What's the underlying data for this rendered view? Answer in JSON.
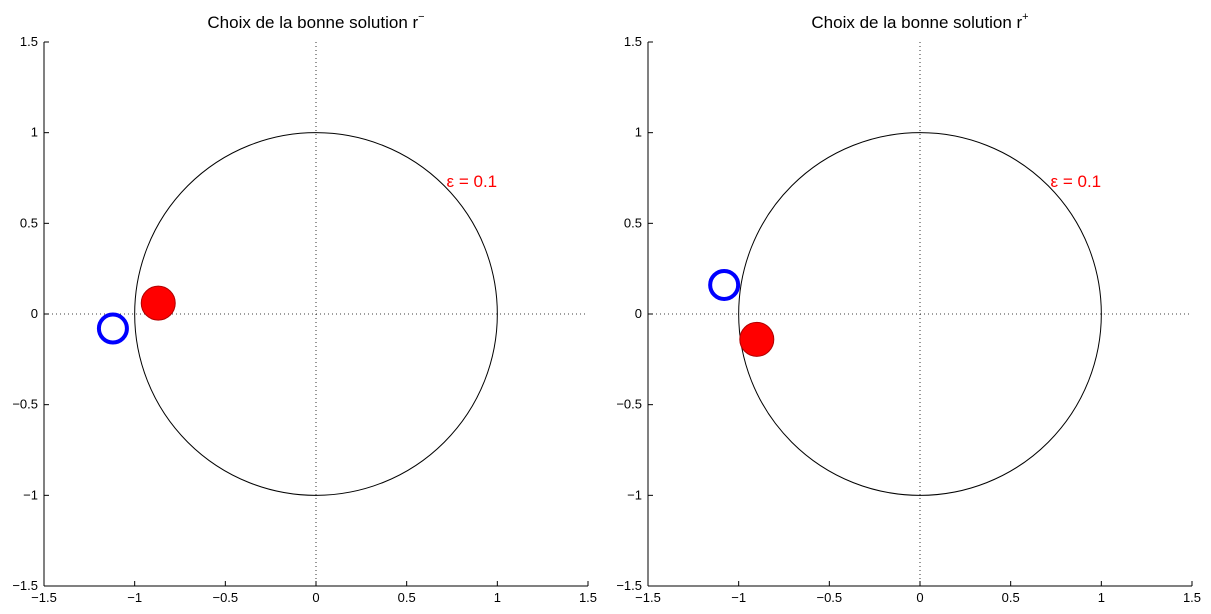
{
  "chart_data": [
    {
      "type": "scatter",
      "title": "Choix de la bonne solution r",
      "title_superscript": "−",
      "xlim": [
        -1.5,
        1.5
      ],
      "ylim": [
        -1.5,
        1.5
      ],
      "xticks": [
        -1.5,
        -1,
        -0.5,
        0,
        0.5,
        1,
        1.5
      ],
      "yticks": [
        -1.5,
        -1,
        -0.5,
        0,
        0.5,
        1,
        1.5
      ],
      "xtick_labels": [
        "−1.5",
        "−1",
        "−0.5",
        "0",
        "0.5",
        "1",
        "1.5"
      ],
      "ytick_labels": [
        "−1.5",
        "−1",
        "−0.5",
        "0",
        "0.5",
        "1",
        "1.5"
      ],
      "grid": false,
      "reference_lines": [
        "dotted x=0",
        "dotted y=0"
      ],
      "unit_circle": {
        "center": [
          0,
          0
        ],
        "radius": 1
      },
      "points": [
        {
          "marker": "open-circle",
          "color": "#0000ff",
          "x": -1.12,
          "y": -0.08
        },
        {
          "marker": "filled-circle",
          "color": "#ff0000",
          "x": -0.87,
          "y": 0.06
        }
      ],
      "annotation": {
        "text": "ε = 0.1",
        "color": "#ff0000",
        "x": 0.72,
        "y": 0.7
      }
    },
    {
      "type": "scatter",
      "title": "Choix de la bonne solution r",
      "title_superscript": "+",
      "xlim": [
        -1.5,
        1.5
      ],
      "ylim": [
        -1.5,
        1.5
      ],
      "xticks": [
        -1.5,
        -1,
        -0.5,
        0,
        0.5,
        1,
        1.5
      ],
      "yticks": [
        -1.5,
        -1,
        -0.5,
        0,
        0.5,
        1,
        1.5
      ],
      "xtick_labels": [
        "−1.5",
        "−1",
        "−0.5",
        "0",
        "0.5",
        "1",
        "1.5"
      ],
      "ytick_labels": [
        "−1.5",
        "−1",
        "−0.5",
        "0",
        "0.5",
        "1",
        "1.5"
      ],
      "grid": false,
      "reference_lines": [
        "dotted x=0",
        "dotted y=0"
      ],
      "unit_circle": {
        "center": [
          0,
          0
        ],
        "radius": 1
      },
      "points": [
        {
          "marker": "open-circle",
          "color": "#0000ff",
          "x": -1.08,
          "y": 0.16
        },
        {
          "marker": "filled-circle",
          "color": "#ff0000",
          "x": -0.9,
          "y": -0.14
        }
      ],
      "annotation": {
        "text": "ε = 0.1",
        "color": "#ff0000",
        "x": 0.72,
        "y": 0.7
      }
    }
  ]
}
